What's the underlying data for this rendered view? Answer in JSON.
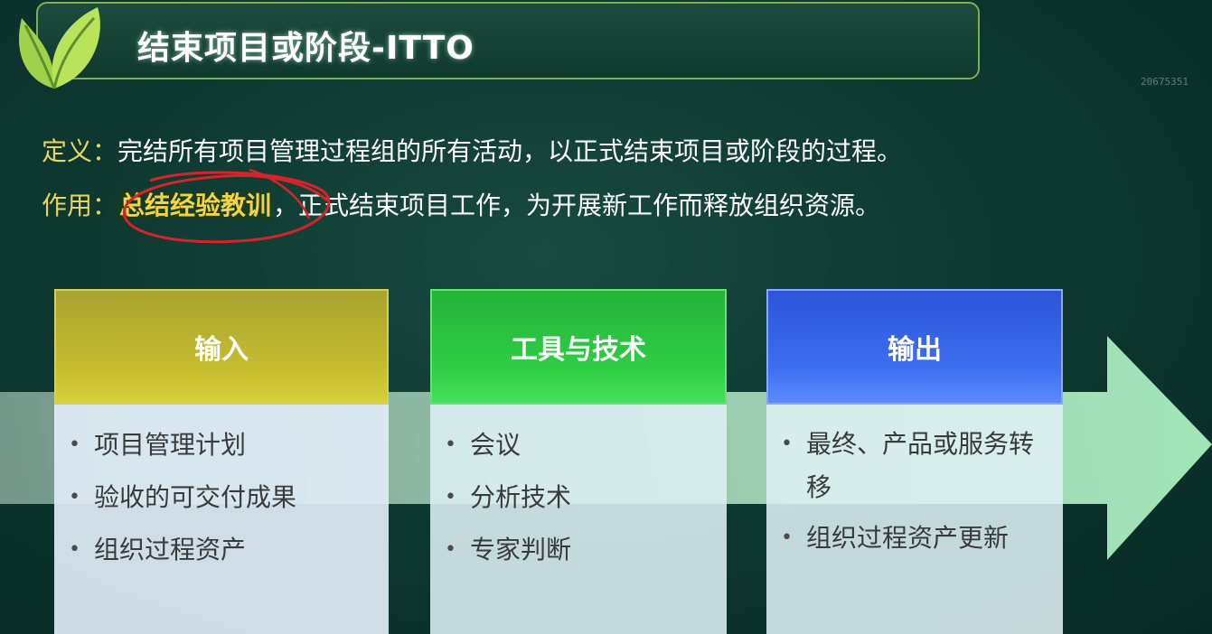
{
  "header": {
    "title": "结束项目或阶段-ITTO",
    "watermark": "20675351"
  },
  "intro": {
    "definition_label": "定义：",
    "definition_text": "完结所有项目管理过程组的所有活动，以正式结束项目或阶段的过程。",
    "purpose_label": "作用：",
    "purpose_highlight": "总结经验教训",
    "purpose_text": "，正式结束项目工作，为开展新工作而释放组织资源。"
  },
  "columns": [
    {
      "title": "输入",
      "items": [
        "项目管理计划",
        "验收的可交付成果",
        "组织过程资产"
      ]
    },
    {
      "title": "工具与技术",
      "items": [
        "会议",
        "分析技术",
        "专家判断"
      ]
    },
    {
      "title": "输出",
      "items": [
        "最终、产品或服务转移",
        "组织过程资产更新"
      ]
    }
  ],
  "bullet_char": "•",
  "colors": {
    "background": "#0e3a32",
    "label_yellow": "#e9d45f",
    "highlight_gold": "#f4d342",
    "circle_red": "#d8232a",
    "input_head": "#c5bd2d",
    "tools_head": "#2fce45",
    "output_head": "#3e6ff0",
    "arrow_green": "#b9f0cc"
  },
  "icons": {
    "logo": "green-leaf-logo"
  }
}
